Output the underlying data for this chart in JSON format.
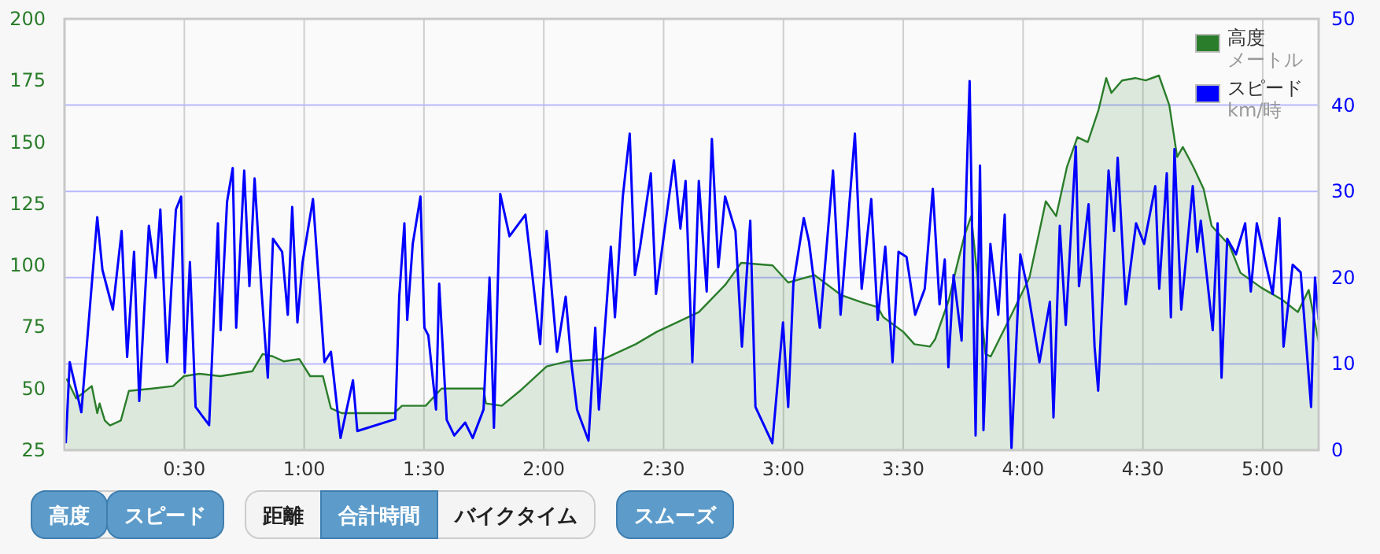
{
  "chart_data": {
    "type": "line",
    "xlim": [
      0,
      314
    ],
    "xticks": [
      {
        "value": 30,
        "label": "0:30"
      },
      {
        "value": 60,
        "label": "1:00"
      },
      {
        "value": 90,
        "label": "1:30"
      },
      {
        "value": 120,
        "label": "2:00"
      },
      {
        "value": 150,
        "label": "2:30"
      },
      {
        "value": 180,
        "label": "3:00"
      },
      {
        "value": 210,
        "label": "3:30"
      },
      {
        "value": 240,
        "label": "4:00"
      },
      {
        "value": 270,
        "label": "4:30"
      },
      {
        "value": 300,
        "label": "5:00"
      }
    ],
    "ylim": [
      25,
      200
    ],
    "yticks": [
      25,
      50,
      75,
      100,
      125,
      150,
      175,
      200
    ],
    "y2lim": [
      0,
      50
    ],
    "y2ticks": [
      0,
      10,
      20,
      30,
      40,
      50
    ],
    "grid": true,
    "legend": "top right",
    "series": [
      {
        "name": "高度",
        "type": "area",
        "color": "#2a7d2a",
        "x": [
          0.5,
          2.9,
          6.8,
          8.2,
          8.8,
          10.1,
          11.4,
          14.1,
          16.1,
          22,
          27.2,
          29.9,
          33.8,
          39,
          47,
          49.6,
          52.2,
          54.9,
          58.8,
          61.5,
          64.7,
          66.7,
          69.4,
          82.5,
          84.5,
          90.4,
          94.4,
          102,
          104.9,
          105.5,
          109.5,
          114,
          120.7,
          126,
          135,
          143,
          148.3,
          152.3,
          158.8,
          165.4,
          169.4,
          177.3,
          181.2,
          187.8,
          194.4,
          199.6,
          203.6,
          205,
          210,
          212.8,
          216.7,
          218,
          221.4,
          223.3,
          225.3,
          227,
          230.6,
          231.9,
          236.5,
          241.6,
          244.4,
          245.7,
          248.3,
          251,
          253.6,
          256.2,
          258.9,
          260.8,
          262.1,
          264.8,
          268.1,
          270.7,
          274,
          276.6,
          278.6,
          280,
          282.6,
          285.2,
          287.2,
          291.7,
          294.4,
          299.6,
          304.9,
          308.8,
          311.5,
          314
        ],
        "values": [
          54,
          46,
          51,
          40,
          44,
          37,
          35,
          37,
          49,
          50,
          51,
          55,
          56,
          55,
          57,
          64,
          63,
          61,
          62,
          55,
          55,
          42,
          40,
          40,
          43,
          43,
          50,
          50,
          50,
          44,
          43,
          49,
          59,
          61,
          62,
          68,
          73,
          76,
          81,
          92,
          101,
          100,
          93,
          96,
          88,
          85,
          83,
          79,
          73,
          68,
          67,
          70,
          86,
          99,
          112,
          120,
          64,
          63,
          78,
          95,
          116,
          126,
          120,
          140,
          152,
          150,
          163,
          176,
          170,
          175,
          176,
          175,
          177,
          165,
          144,
          148,
          140,
          131,
          116,
          108,
          97,
          91,
          86,
          81,
          90,
          69
        ]
      },
      {
        "name": "スピード",
        "axis": "y2",
        "color": "#0000ff",
        "x": [
          0.3,
          1.3,
          4.2,
          8.2,
          9.5,
          12.1,
          14.3,
          15.7,
          17.4,
          18.7,
          21.1,
          22.8,
          24,
          25.7,
          27.9,
          29.2,
          30.1,
          31.4,
          32.8,
          36.2,
          38.4,
          39.1,
          40.7,
          42.1,
          43,
          45,
          46.3,
          47.6,
          49.3,
          50.9,
          52.2,
          54.5,
          55.9,
          57,
          58.3,
          59.6,
          62.2,
          65.1,
          66.7,
          69.1,
          72.2,
          73.3,
          82.8,
          83.8,
          85.1,
          85.8,
          87.2,
          89.1,
          90.1,
          91.1,
          93,
          93.8,
          95.7,
          97.6,
          100.3,
          102.2,
          104.9,
          106.4,
          107.5,
          109.1,
          111.4,
          115.4,
          119.1,
          120.7,
          123.3,
          125.5,
          127,
          128.3,
          131.2,
          132.9,
          133.8,
          136.8,
          137.8,
          139.8,
          141.5,
          142.8,
          144.1,
          146.8,
          148.1,
          152.6,
          154.2,
          155.5,
          157.2,
          158.8,
          160.8,
          162.1,
          163.7,
          165.4,
          168,
          169.6,
          171.7,
          173,
          177.2,
          179.9,
          181.2,
          182.5,
          185.1,
          186.4,
          189.1,
          192.4,
          194.3,
          197.9,
          199.6,
          202,
          203.6,
          205.5,
          207.3,
          208.8,
          210.8,
          213,
          215.4,
          217.4,
          219.1,
          220.4,
          221.3,
          222.6,
          224.6,
          226.6,
          228.1,
          229.2,
          230.1,
          231.8,
          233.8,
          235.4,
          237.1,
          239.3,
          241.1,
          244.1,
          246.7,
          247.6,
          249.2,
          250.7,
          253.2,
          254,
          256.4,
          257.9,
          258.8,
          261.4,
          262.8,
          263.7,
          265.7,
          268.3,
          270.3,
          273.1,
          274.1,
          276,
          277,
          277.9,
          279.6,
          282.5,
          283.6,
          284.5,
          287.5,
          288.7,
          289.7,
          291.1,
          293.3,
          295.6,
          297,
          298.5,
          300.7,
          302.5,
          304.2,
          305.2,
          307.5,
          309.5,
          312.1,
          313.1,
          314
        ],
        "values": [
          0.8,
          10.2,
          4.4,
          27,
          20.9,
          16.3,
          25.4,
          10.8,
          23,
          5.7,
          26,
          20,
          27.9,
          10.2,
          27.9,
          29.4,
          9,
          21.8,
          5,
          2.9,
          26.3,
          13.9,
          28.8,
          32.7,
          14.2,
          32.4,
          19,
          31.5,
          18.7,
          8.4,
          24.5,
          23,
          15.7,
          28.2,
          14.8,
          21.8,
          29.1,
          10.2,
          11.4,
          1.4,
          8.1,
          2.2,
          3.6,
          17.8,
          26.3,
          15.1,
          23.9,
          29.4,
          14.2,
          13.3,
          4.7,
          19.3,
          3.5,
          1.7,
          3.2,
          1.4,
          4.7,
          20,
          2.6,
          29.7,
          24.8,
          27.3,
          12.3,
          25.4,
          11.4,
          17.8,
          9.6,
          4.7,
          1.1,
          14.2,
          4.7,
          23.6,
          15.4,
          29.4,
          36.7,
          20.3,
          23.6,
          32.1,
          18.1,
          33.6,
          25.7,
          31.2,
          10.2,
          31.2,
          18.4,
          36.1,
          21.2,
          29.4,
          25.4,
          12,
          26.6,
          5,
          0.8,
          14.8,
          5,
          19.3,
          26.9,
          24.2,
          14.2,
          32.4,
          15.7,
          36.7,
          18.7,
          29.1,
          15.1,
          23.6,
          10.2,
          23,
          22.4,
          15.7,
          18.7,
          30.3,
          16.9,
          22.1,
          9.6,
          20.3,
          12.7,
          42.8,
          1.7,
          33,
          2.3,
          23.9,
          15.7,
          27.3,
          0.2,
          22.7,
          18.7,
          10.2,
          17.2,
          3.8,
          26,
          14.5,
          35.2,
          19,
          28.5,
          12,
          6.9,
          32.4,
          25.4,
          33.9,
          16.9,
          26.3,
          23.9,
          30.6,
          18.7,
          32.1,
          15.4,
          34.9,
          16.3,
          30.6,
          23,
          26.6,
          13.9,
          26.3,
          8.4,
          24.5,
          22.7,
          26.3,
          18.4,
          26.3,
          21.8,
          18.1,
          26.9,
          12,
          21.5,
          20.6,
          5,
          20,
          15.1
        ]
      }
    ],
    "annotations": [
      "高度",
      "スピード",
      "距離",
      "合計時間",
      "バイクタイム",
      "スムーズ",
      "メートル",
      "km/時"
    ]
  }
}
